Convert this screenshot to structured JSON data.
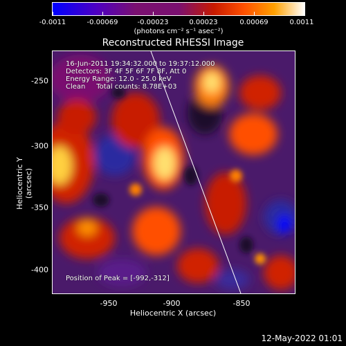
{
  "colorbar": {
    "ticks": [
      "-0.0011",
      "-0.00069",
      "-0.00023",
      "0.00023",
      "0.00069",
      "0.0011"
    ],
    "unit": "(photons cm⁻² s⁻¹ asec⁻²)",
    "colors": [
      "#0000ff",
      "#5000c0",
      "#7a1070",
      "#c81a00",
      "#ff5000",
      "#ffa000",
      "#ffffff"
    ]
  },
  "title": "Reconstructed RHESSI Image",
  "info": {
    "time": "16-Jun-2011 19:34:32.000 to 19:37:12.000",
    "detectors": "Detectors: 3F 4F 5F 6F 7F 8F, Att 0",
    "energy": "Energy Range: 12.0 - 25.0 keV",
    "clean": "Clean     Total counts: 8.78E+03",
    "peak": "Position of Peak = [-992,-312]"
  },
  "axes": {
    "xlabel": "Heliocentric X (arcsec)",
    "ylabel": "Heliocentric Y (arcsec)",
    "xticks": [
      "-950",
      "-900",
      "-850"
    ],
    "yticks": [
      "-250",
      "-300",
      "-350",
      "-400"
    ]
  },
  "footer": "12-May-2022 01:01"
}
